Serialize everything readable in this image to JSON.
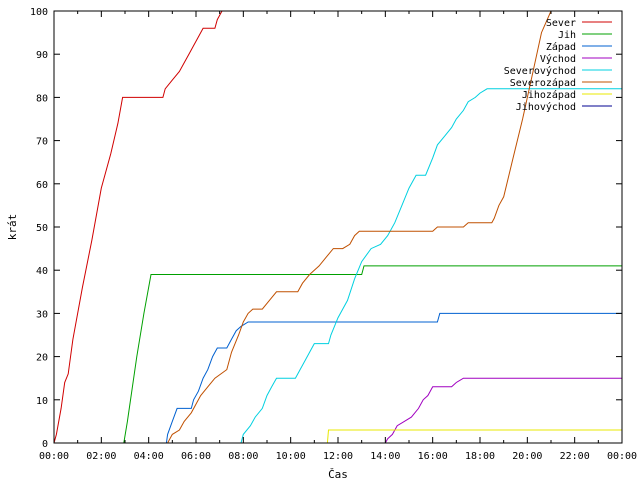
{
  "chart_data": {
    "type": "line",
    "title": "",
    "xlabel": "Čas",
    "ylabel": "krát",
    "xlim": [
      0,
      24
    ],
    "ylim": [
      0,
      100
    ],
    "x_ticks": [
      "00:00",
      "02:00",
      "04:00",
      "06:00",
      "08:00",
      "10:00",
      "12:00",
      "14:00",
      "16:00",
      "18:00",
      "20:00",
      "22:00",
      "00:00"
    ],
    "y_ticks": [
      0,
      10,
      20,
      30,
      40,
      50,
      60,
      70,
      80,
      90,
      100
    ],
    "legend": "top-right",
    "step": true,
    "series": [
      {
        "name": "Sever",
        "color": "#d00000",
        "points": [
          [
            0,
            0
          ],
          [
            0.1,
            2
          ],
          [
            0.3,
            8
          ],
          [
            0.45,
            14
          ],
          [
            0.6,
            16
          ],
          [
            0.8,
            24
          ],
          [
            1.2,
            36
          ],
          [
            1.6,
            47
          ],
          [
            2.0,
            59
          ],
          [
            2.4,
            67
          ],
          [
            2.7,
            74
          ],
          [
            2.9,
            80
          ],
          [
            4.6,
            80
          ],
          [
            4.7,
            82
          ],
          [
            5.0,
            84
          ],
          [
            5.3,
            86
          ],
          [
            5.5,
            88
          ],
          [
            5.7,
            90
          ],
          [
            5.9,
            92
          ],
          [
            6.1,
            94
          ],
          [
            6.3,
            96
          ],
          [
            6.8,
            96
          ],
          [
            6.9,
            98
          ],
          [
            7.0,
            99
          ],
          [
            7.1,
            100
          ]
        ]
      },
      {
        "name": "Jih",
        "color": "#00a000",
        "points": [
          [
            0,
            0
          ],
          [
            2.95,
            0
          ],
          [
            3.1,
            5
          ],
          [
            3.5,
            20
          ],
          [
            3.8,
            30
          ],
          [
            4.1,
            39
          ],
          [
            13.0,
            39
          ],
          [
            13.1,
            41
          ],
          [
            24,
            41
          ]
        ]
      },
      {
        "name": "Západ",
        "color": "#0060d0",
        "points": [
          [
            0,
            0
          ],
          [
            4.75,
            0
          ],
          [
            4.8,
            2
          ],
          [
            5.0,
            5
          ],
          [
            5.2,
            8
          ],
          [
            5.8,
            8
          ],
          [
            5.9,
            10
          ],
          [
            6.1,
            12
          ],
          [
            6.3,
            15
          ],
          [
            6.5,
            17
          ],
          [
            6.7,
            20
          ],
          [
            6.9,
            22
          ],
          [
            7.3,
            22
          ],
          [
            7.5,
            24
          ],
          [
            7.7,
            26
          ],
          [
            7.9,
            27
          ],
          [
            8.2,
            28
          ],
          [
            16.2,
            28
          ],
          [
            16.3,
            30
          ],
          [
            24,
            30
          ]
        ]
      },
      {
        "name": "Východ",
        "color": "#a000c0",
        "points": [
          [
            0,
            0
          ],
          [
            14.0,
            0
          ],
          [
            14.1,
            1
          ],
          [
            14.3,
            2
          ],
          [
            14.5,
            4
          ],
          [
            14.8,
            5
          ],
          [
            15.1,
            6
          ],
          [
            15.4,
            8
          ],
          [
            15.6,
            10
          ],
          [
            15.8,
            11
          ],
          [
            16.0,
            13
          ],
          [
            16.8,
            13
          ],
          [
            17.0,
            14
          ],
          [
            17.3,
            15
          ],
          [
            24,
            15
          ]
        ]
      },
      {
        "name": "Severovýchod",
        "color": "#00d0e0",
        "points": [
          [
            0,
            0
          ],
          [
            7.9,
            0
          ],
          [
            8.0,
            2
          ],
          [
            8.3,
            4
          ],
          [
            8.5,
            6
          ],
          [
            8.8,
            8
          ],
          [
            9.0,
            11
          ],
          [
            9.2,
            13
          ],
          [
            9.4,
            15
          ],
          [
            10.2,
            15
          ],
          [
            10.4,
            17
          ],
          [
            10.6,
            19
          ],
          [
            10.8,
            21
          ],
          [
            11.0,
            23
          ],
          [
            11.6,
            23
          ],
          [
            11.7,
            25
          ],
          [
            12.0,
            29
          ],
          [
            12.4,
            33
          ],
          [
            12.7,
            38
          ],
          [
            13.0,
            42
          ],
          [
            13.4,
            45
          ],
          [
            13.8,
            46
          ],
          [
            14.1,
            48
          ],
          [
            14.4,
            51
          ],
          [
            14.7,
            55
          ],
          [
            15.0,
            59
          ],
          [
            15.3,
            62
          ],
          [
            15.7,
            62
          ],
          [
            16.0,
            66
          ],
          [
            16.2,
            69
          ],
          [
            16.5,
            71
          ],
          [
            16.8,
            73
          ],
          [
            17.0,
            75
          ],
          [
            17.3,
            77
          ],
          [
            17.5,
            79
          ],
          [
            17.8,
            80
          ],
          [
            18.0,
            81
          ],
          [
            18.3,
            82
          ],
          [
            24,
            82
          ]
        ]
      },
      {
        "name": "Severozápad",
        "color": "#c05000",
        "points": [
          [
            0,
            0
          ],
          [
            4.8,
            0
          ],
          [
            5.0,
            2
          ],
          [
            5.3,
            3
          ],
          [
            5.5,
            5
          ],
          [
            5.8,
            7
          ],
          [
            6.0,
            9
          ],
          [
            6.2,
            11
          ],
          [
            6.5,
            13
          ],
          [
            6.8,
            15
          ],
          [
            7.3,
            17
          ],
          [
            7.5,
            21
          ],
          [
            7.8,
            25
          ],
          [
            8.0,
            28
          ],
          [
            8.2,
            30
          ],
          [
            8.4,
            31
          ],
          [
            8.8,
            31
          ],
          [
            9.1,
            33
          ],
          [
            9.4,
            35
          ],
          [
            10.3,
            35
          ],
          [
            10.5,
            37
          ],
          [
            10.8,
            39
          ],
          [
            11.2,
            41
          ],
          [
            11.5,
            43
          ],
          [
            11.8,
            45
          ],
          [
            12.2,
            45
          ],
          [
            12.5,
            46
          ],
          [
            12.7,
            48
          ],
          [
            12.9,
            49
          ],
          [
            16.0,
            49
          ],
          [
            16.2,
            50
          ],
          [
            17.3,
            50
          ],
          [
            17.5,
            51
          ],
          [
            18.5,
            51
          ],
          [
            18.6,
            52
          ],
          [
            18.8,
            55
          ],
          [
            19.0,
            57
          ],
          [
            19.4,
            66
          ],
          [
            19.8,
            75
          ],
          [
            20.2,
            85
          ],
          [
            20.6,
            95
          ],
          [
            21.0,
            100
          ]
        ]
      },
      {
        "name": "Jihozápad",
        "color": "#e8e800",
        "points": [
          [
            0,
            0
          ],
          [
            11.55,
            0
          ],
          [
            11.6,
            3
          ],
          [
            24,
            3
          ]
        ]
      },
      {
        "name": "Jihovýchod",
        "color": "#000090",
        "points": []
      }
    ]
  }
}
